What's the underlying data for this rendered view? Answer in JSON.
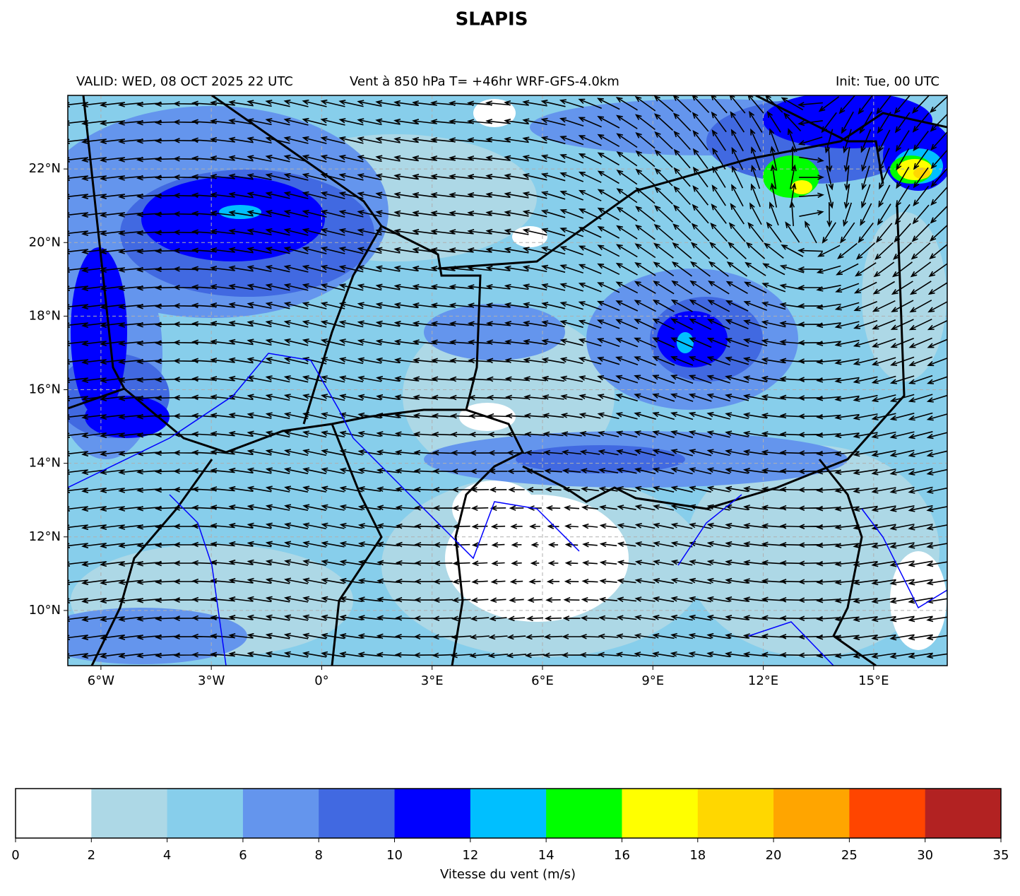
{
  "title": "SLAPIS",
  "header": {
    "valid": "VALID: WED, 08 OCT 2025 22 UTC",
    "description": "Vent à 850 hPa T= +46hr  WRF-GFS-4.0km",
    "init": "Init: Tue, 00 UTC"
  },
  "map": {
    "type": "map",
    "xlim": [
      -6.9,
      17
    ],
    "ylim": [
      8.5,
      24
    ],
    "grid": true,
    "xticks": [
      {
        "value": -6,
        "label": "6°W"
      },
      {
        "value": -3,
        "label": "3°W"
      },
      {
        "value": 0,
        "label": "0°"
      },
      {
        "value": 3,
        "label": "3°E"
      },
      {
        "value": 6,
        "label": "6°E"
      },
      {
        "value": 9,
        "label": "9°E"
      },
      {
        "value": 12,
        "label": "12°E"
      },
      {
        "value": 15,
        "label": "15°E"
      }
    ],
    "yticks": [
      {
        "value": 10,
        "label": "10°N"
      },
      {
        "value": 12,
        "label": "12°N"
      },
      {
        "value": 14,
        "label": "14°N"
      },
      {
        "value": 16,
        "label": "16°N"
      },
      {
        "value": 18,
        "label": "18°N"
      },
      {
        "value": 20,
        "label": "20°N"
      },
      {
        "value": 22,
        "label": "22°N"
      }
    ]
  },
  "colorbar": {
    "label": "Vitesse du vent (m/s)",
    "boundaries": [
      0,
      2,
      4,
      6,
      8,
      10,
      12,
      14,
      16,
      18,
      20,
      25,
      30,
      35
    ],
    "colors": [
      "#ffffff",
      "#add8e6",
      "#87ceeb",
      "#6495ed",
      "#4169e1",
      "#0000ff",
      "#00bfff",
      "#00ff00",
      "#ffff00",
      "#ffd700",
      "#ffa500",
      "#ff4500",
      "#b22222"
    ]
  }
}
